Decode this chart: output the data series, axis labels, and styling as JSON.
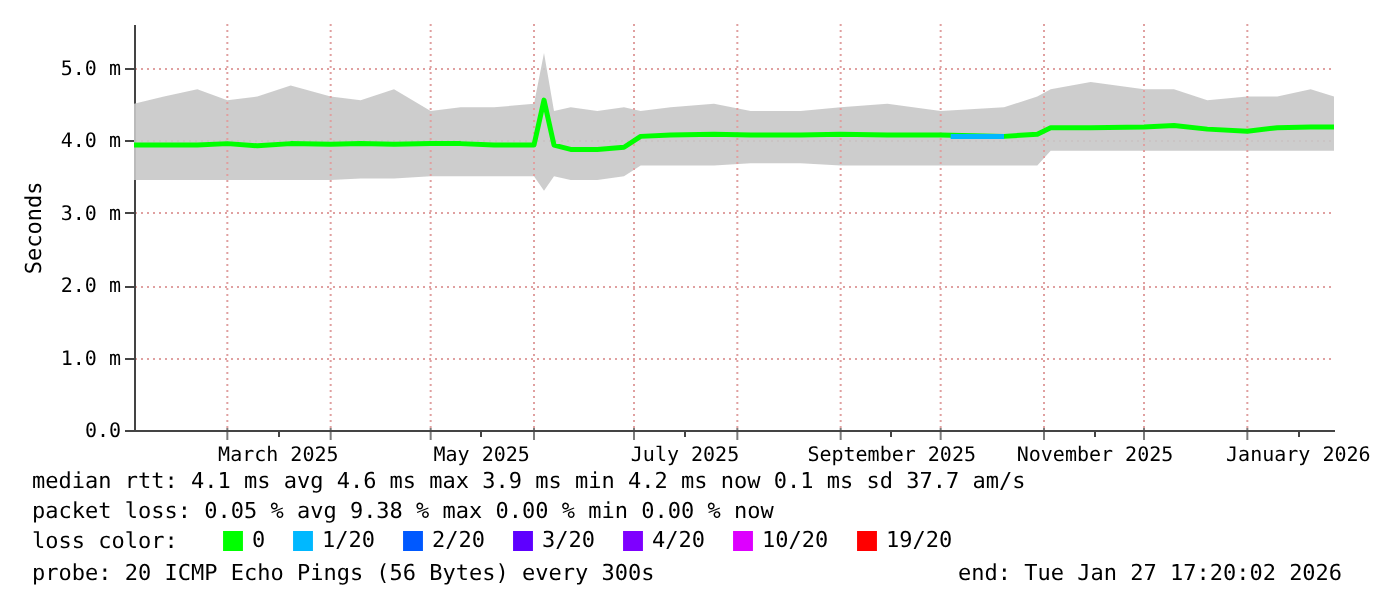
{
  "chart_data": {
    "type": "line",
    "ylabel": "Seconds",
    "x": [
      "2025-02-01",
      "2025-02-10",
      "2025-02-20",
      "2025-03-01",
      "2025-03-10",
      "2025-03-20",
      "2025-04-01",
      "2025-04-10",
      "2025-04-20",
      "2025-05-01",
      "2025-05-10",
      "2025-05-20",
      "2025-06-01",
      "2025-06-04",
      "2025-06-07",
      "2025-06-12",
      "2025-06-20",
      "2025-06-28",
      "2025-07-03",
      "2025-07-12",
      "2025-07-25",
      "2025-08-05",
      "2025-08-20",
      "2025-09-01",
      "2025-09-15",
      "2025-10-01",
      "2025-10-20",
      "2025-10-30",
      "2025-11-03",
      "2025-11-15",
      "2025-12-01",
      "2025-12-10",
      "2025-12-20",
      "2026-01-01",
      "2026-01-10",
      "2026-01-20",
      "2026-01-27"
    ],
    "series": [
      {
        "name": "0",
        "color": "#00ff00",
        "values": [
          3.93,
          3.93,
          3.93,
          3.95,
          3.92,
          3.95,
          3.94,
          3.95,
          3.94,
          3.95,
          3.95,
          3.93,
          3.93,
          4.55,
          3.93,
          3.87,
          3.87,
          3.9,
          4.05,
          4.07,
          4.08,
          4.07,
          4.07,
          4.08,
          4.07,
          4.07,
          4.05,
          4.08,
          4.17,
          4.17,
          4.18,
          4.2,
          4.15,
          4.12,
          4.17,
          4.18,
          4.18
        ],
        "lower": [
          3.45,
          3.45,
          3.45,
          3.45,
          3.45,
          3.45,
          3.45,
          3.47,
          3.47,
          3.5,
          3.5,
          3.5,
          3.5,
          3.3,
          3.5,
          3.45,
          3.45,
          3.5,
          3.65,
          3.65,
          3.65,
          3.68,
          3.68,
          3.65,
          3.65,
          3.65,
          3.65,
          3.65,
          3.85,
          3.85,
          3.85,
          3.85,
          3.85,
          3.85,
          3.85,
          3.85,
          3.85
        ],
        "upper": [
          4.5,
          4.6,
          4.7,
          4.55,
          4.6,
          4.75,
          4.6,
          4.55,
          4.7,
          4.4,
          4.45,
          4.45,
          4.5,
          5.2,
          4.4,
          4.45,
          4.4,
          4.45,
          4.4,
          4.45,
          4.5,
          4.4,
          4.4,
          4.45,
          4.5,
          4.4,
          4.45,
          4.6,
          4.7,
          4.8,
          4.7,
          4.7,
          4.55,
          4.6,
          4.6,
          4.7,
          4.6
        ]
      },
      {
        "name": "1/20",
        "color": "#00b8ff",
        "x": [
          "2025-10-04",
          "2025-10-12",
          "2025-10-20"
        ],
        "values": [
          4.05,
          4.05,
          4.05
        ]
      },
      {
        "name": "2/20",
        "color": "#0059ff",
        "values": [
          null,
          null,
          null,
          null,
          null,
          null,
          null,
          null,
          null,
          null,
          null,
          null,
          null,
          null,
          null,
          null,
          null,
          null,
          null,
          null,
          null,
          null,
          null,
          null,
          null,
          null,
          null,
          null,
          null,
          null,
          null,
          null,
          null,
          null,
          null,
          null,
          null
        ]
      },
      {
        "name": "3/20",
        "color": "#5e00ff",
        "values": [
          null,
          null,
          null,
          null,
          null,
          null,
          null,
          null,
          null,
          null,
          null,
          null,
          null,
          null,
          null,
          null,
          null,
          null,
          null,
          null,
          null,
          null,
          null,
          null,
          null,
          null,
          null,
          null,
          null,
          null,
          null,
          null,
          null,
          null,
          null,
          null,
          null
        ]
      },
      {
        "name": "4/20",
        "color": "#7e00ff",
        "values": [
          null,
          null,
          null,
          null,
          null,
          null,
          null,
          null,
          null,
          null,
          null,
          null,
          null,
          null,
          null,
          null,
          null,
          null,
          null,
          null,
          null,
          null,
          null,
          null,
          null,
          null,
          null,
          null,
          null,
          null,
          null,
          null,
          null,
          null,
          null,
          null,
          null
        ]
      },
      {
        "name": "10/20",
        "color": "#dd00ff",
        "values": [
          null,
          null,
          null,
          null,
          null,
          null,
          null,
          null,
          null,
          null,
          null,
          null,
          null,
          null,
          null,
          null,
          null,
          null,
          null,
          null,
          null,
          null,
          null,
          null,
          null,
          null,
          null,
          null,
          null,
          null,
          null,
          null,
          null,
          null,
          null,
          null,
          null
        ]
      },
      {
        "name": "19/20",
        "color": "#ff0000",
        "values": [
          null,
          null,
          null,
          null,
          null,
          null,
          null,
          null,
          null,
          null,
          null,
          null,
          null,
          null,
          null,
          null,
          null,
          null,
          null,
          null,
          null,
          null,
          null,
          null,
          null,
          null,
          null,
          null,
          null,
          null,
          null,
          null,
          null,
          null,
          null,
          null,
          null
        ]
      }
    ],
    "xlim": [
      "2025-02-01",
      "2026-01-27"
    ],
    "xticks": [
      {
        "value": "2025-03-01",
        "label": null
      },
      {
        "value": "2025-03-16",
        "label": "March 2025"
      },
      {
        "value": "2025-04-01",
        "label": null
      },
      {
        "value": "2025-05-01",
        "label": null
      },
      {
        "value": "2025-05-16",
        "label": "May 2025"
      },
      {
        "value": "2025-06-01",
        "label": null
      },
      {
        "value": "2025-07-01",
        "label": null
      },
      {
        "value": "2025-07-16",
        "label": "July 2025"
      },
      {
        "value": "2025-08-01",
        "label": null
      },
      {
        "value": "2025-09-01",
        "label": null
      },
      {
        "value": "2025-09-16",
        "label": "September 2025"
      },
      {
        "value": "2025-10-01",
        "label": null
      },
      {
        "value": "2025-11-01",
        "label": null
      },
      {
        "value": "2025-11-16",
        "label": "November 2025"
      },
      {
        "value": "2025-12-01",
        "label": null
      },
      {
        "value": "2026-01-01",
        "label": null
      },
      {
        "value": "2026-01-16",
        "label": "January 2026"
      }
    ],
    "ylim": [
      0,
      5.6
    ],
    "yticks": [
      {
        "value": 0,
        "label": "0.0"
      },
      {
        "value": 1,
        "label": "1.0 m"
      },
      {
        "value": 2,
        "label": "2.0 m"
      },
      {
        "value": 3,
        "label": "3.0 m"
      },
      {
        "value": 4,
        "label": "4.0 m"
      },
      {
        "value": 5,
        "label": "5.0 m"
      }
    ],
    "grid": true,
    "legend": "bottom",
    "legend_title": "loss color:",
    "marker": "none",
    "line_style": "solid",
    "annotations": [
      "median rtt:  4.1 ms avg  4.6 ms max  3.9 ms min  4.2 ms now  0.1 ms sd  37.7   am/s",
      "packet loss: 0.05 % avg  9.38 % max  0.00 % min  0.00 % now",
      "probe:       20 ICMP Echo Pings (56 Bytes) every 300s",
      "end: Tue Jan 27 17:20:02 2026"
    ]
  }
}
